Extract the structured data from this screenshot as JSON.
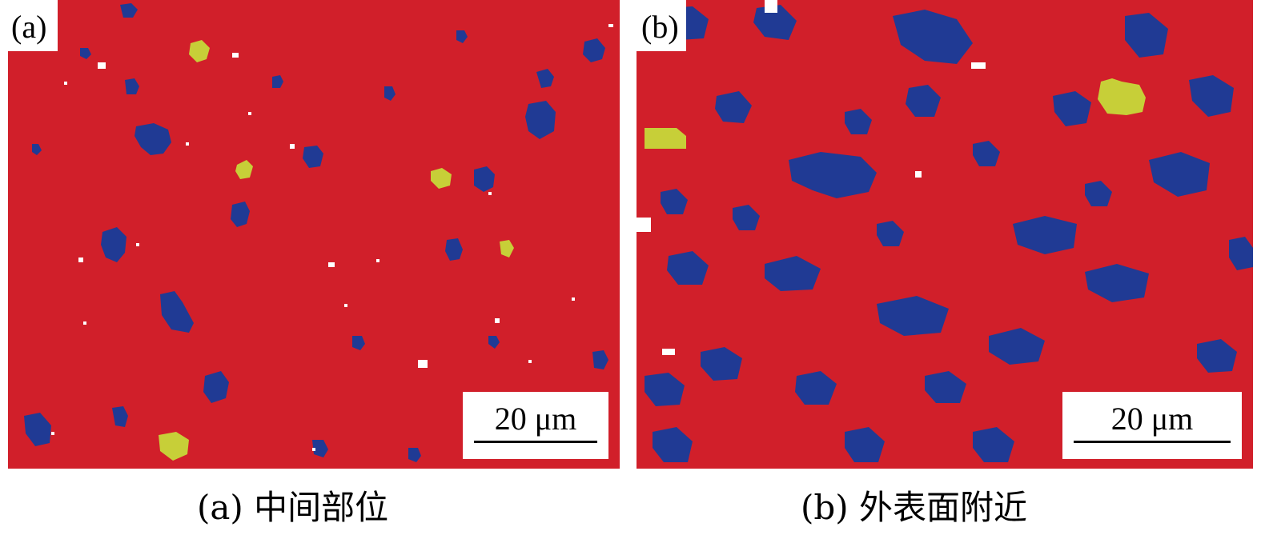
{
  "colors": {
    "matrix": "#d11f2a",
    "phase_blue": "#203a94",
    "phase_yellow": "#c7cf38",
    "unindexed": "#ffffff"
  },
  "panels": [
    {
      "label": "(a)",
      "scale_bar": "20 μm",
      "caption": "(a) 中间部位"
    },
    {
      "label": "(b)",
      "scale_bar": "20 μm",
      "caption": "(b) 外表面附近"
    }
  ]
}
